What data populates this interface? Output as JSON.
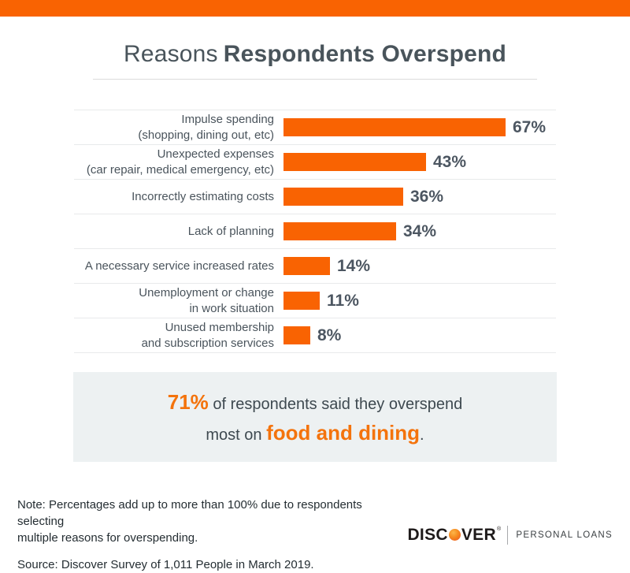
{
  "banner": {
    "color": "#F96302"
  },
  "title": {
    "regular": "Reasons",
    "bold": "Respondents Overspend"
  },
  "chart_data": {
    "type": "bar",
    "orientation": "horizontal",
    "title": "Reasons Respondents Overspend",
    "categories": [
      "Impulse spending (shopping, dining out, etc)",
      "Unexpected expenses (car repair, medical emergency, etc)",
      "Incorrectly estimating costs",
      "Lack of planning",
      "A necessary service increased rates",
      "Unemployment or change in work situation",
      "Unused membership and subscription services"
    ],
    "category_lines": [
      [
        "Impulse spending",
        "(shopping, dining out, etc)"
      ],
      [
        "Unexpected expenses",
        "(car repair, medical emergency, etc)"
      ],
      [
        "Incorrectly estimating costs"
      ],
      [
        "Lack of planning"
      ],
      [
        "A necessary service increased rates"
      ],
      [
        "Unemployment or change",
        "in work situation"
      ],
      [
        "Unused membership",
        "and subscription services"
      ]
    ],
    "values": [
      67,
      43,
      36,
      34,
      14,
      11,
      8
    ],
    "value_labels": [
      "67%",
      "43%",
      "36%",
      "34%",
      "14%",
      "11%",
      "8%"
    ],
    "unit": "%",
    "xlim": [
      0,
      70
    ],
    "bar_color": "#F96302",
    "grid": false,
    "legend": false
  },
  "callout": {
    "line1_accent": "71%",
    "line1_rest": " of respondents said they overspend",
    "line2_prefix": "most on ",
    "line2_accent": "food and dining",
    "line2_suffix": "."
  },
  "footer": {
    "note_line1": "Note: Percentages add up to more than 100% due to respondents selecting",
    "note_line2": "multiple reasons for overspending.",
    "source": "Source: Discover Survey of 1,011 People in March 2019."
  },
  "logo": {
    "brand_prefix": "DISC",
    "brand_suffix": "VER",
    "registered": "®",
    "tagline": "PERSONAL LOANS",
    "circle_icon": "discover-orange-ball-icon"
  },
  "colors": {
    "accent_orange": "#F96302",
    "text_orange": "#F4730C",
    "slate_text": "#4A545C",
    "callout_bg": "#EDF1F2"
  }
}
